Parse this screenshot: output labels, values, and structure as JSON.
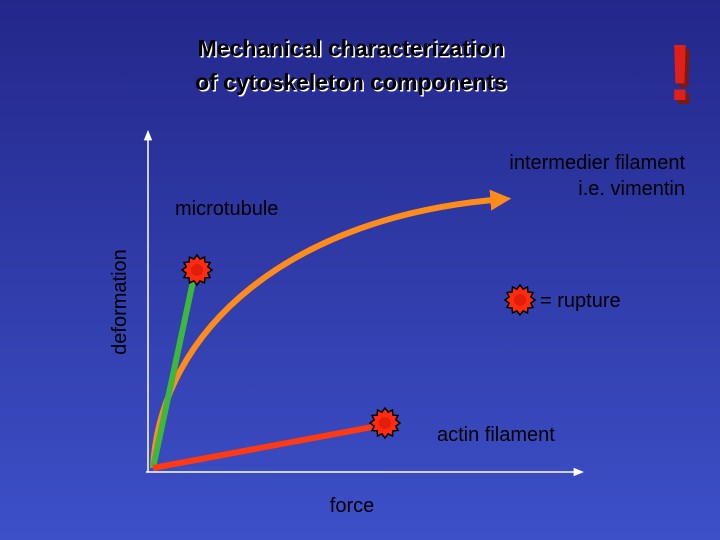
{
  "title": {
    "line1": "Mechanical characterization",
    "line2": "of cytoskeleton components"
  },
  "exclamation": "!",
  "labels": {
    "intermediate_line1": "intermedier filament",
    "intermediate_line2": "i.e. vimentin",
    "microtubule": "microtubule",
    "y_axis": "deformation",
    "rupture": "= rupture",
    "actin": "actin filament",
    "x_axis": "force"
  }
}
